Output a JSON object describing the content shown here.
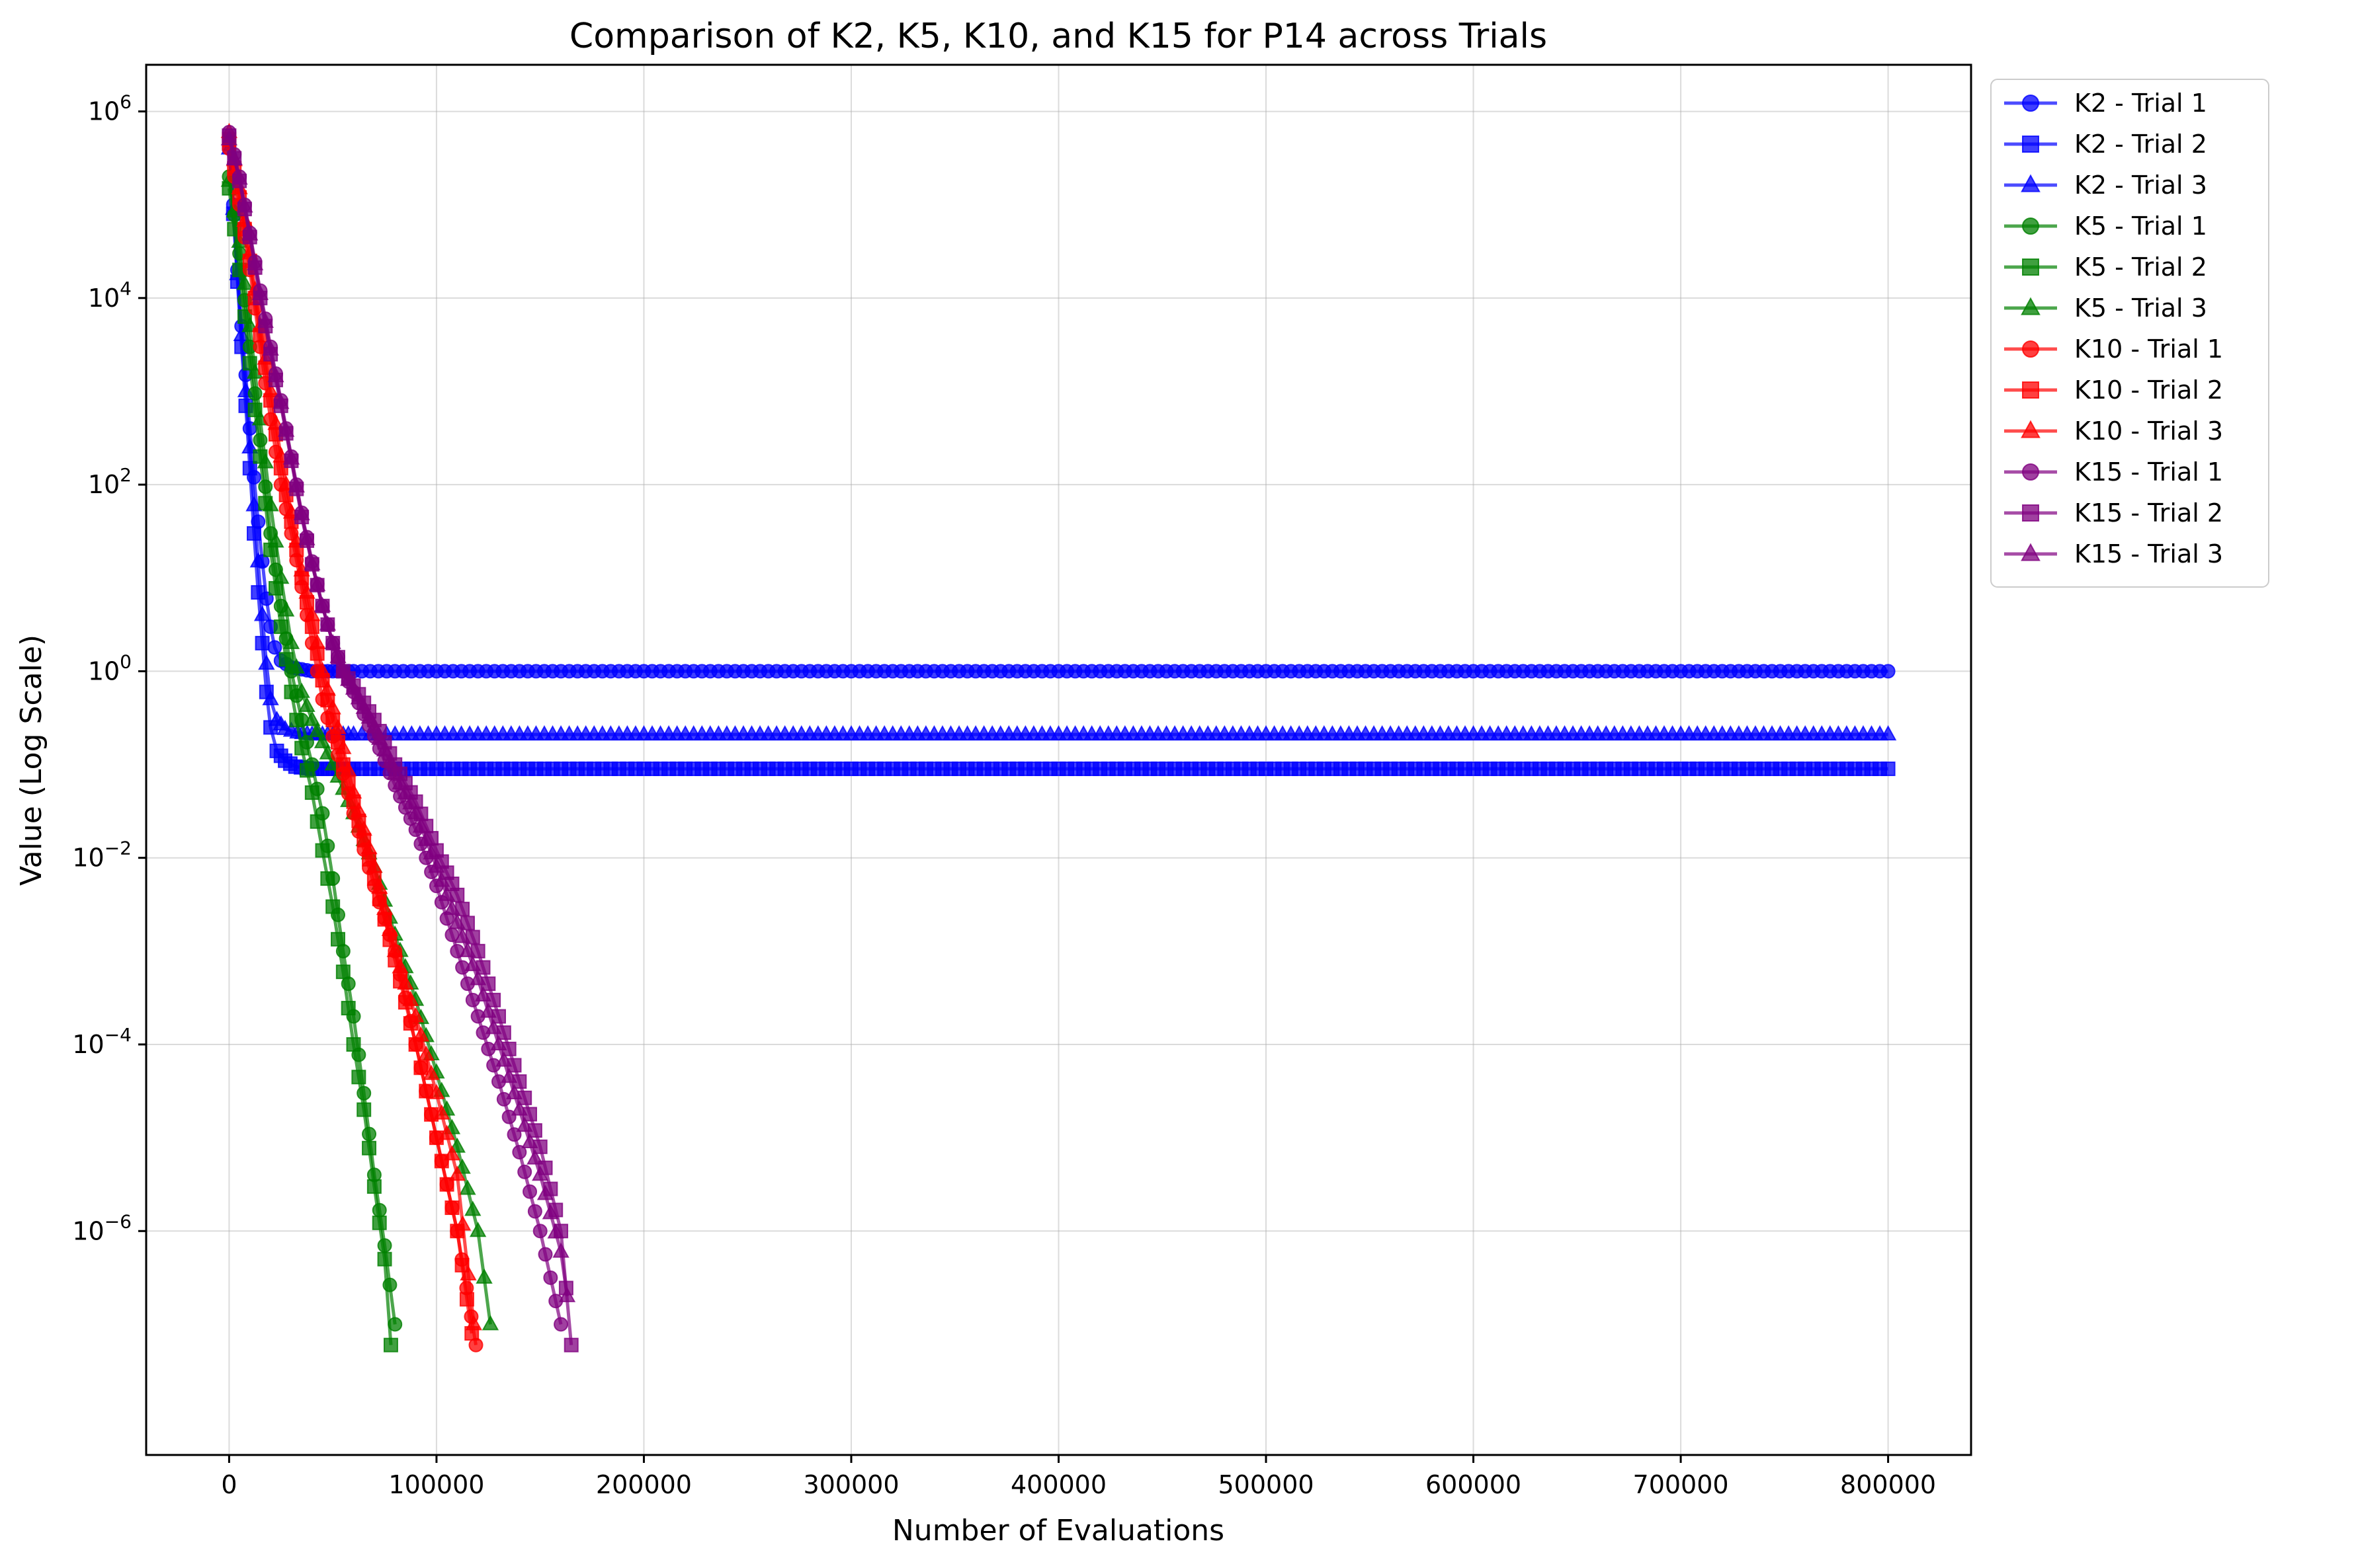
{
  "chart_data": {
    "type": "line",
    "title": "Comparison of K2, K5, K10, and K15 for P14 across Trials",
    "xlabel": "Number of Evaluations",
    "ylabel": "Value (Log Scale)",
    "xlim": [
      -40000,
      840000
    ],
    "ylim": [
      -8.4,
      6.5
    ],
    "yscale": "log",
    "grid": true,
    "legend_position": "outside-top-right",
    "x_ticks": [
      {
        "value": 0,
        "label": "0"
      },
      {
        "value": 100000,
        "label": "100000"
      },
      {
        "value": 200000,
        "label": "200000"
      },
      {
        "value": 300000,
        "label": "300000"
      },
      {
        "value": 400000,
        "label": "400000"
      },
      {
        "value": 500000,
        "label": "500000"
      },
      {
        "value": 600000,
        "label": "600000"
      },
      {
        "value": 700000,
        "label": "700000"
      },
      {
        "value": 800000,
        "label": "800000"
      }
    ],
    "y_ticks": [
      {
        "exp": 6,
        "base": "10",
        "sup": "6"
      },
      {
        "exp": 4,
        "base": "10",
        "sup": "4"
      },
      {
        "exp": 2,
        "base": "10",
        "sup": "2"
      },
      {
        "exp": 0,
        "base": "10",
        "sup": "0"
      },
      {
        "exp": -2,
        "base": "10",
        "sup": "−2"
      },
      {
        "exp": -4,
        "base": "10",
        "sup": "−4"
      },
      {
        "exp": -6,
        "base": "10",
        "sup": "−6"
      }
    ],
    "series": [
      {
        "name": "K2 - Trial 1",
        "color": "#0000ff",
        "marker": "circle",
        "points": [
          [
            0,
            500000
          ],
          [
            2000,
            100000
          ],
          [
            4000,
            20000
          ],
          [
            6000,
            5000
          ],
          [
            8000,
            1500
          ],
          [
            10000,
            400
          ],
          [
            12000,
            120
          ],
          [
            14000,
            40
          ],
          [
            16000,
            15
          ],
          [
            18000,
            6
          ],
          [
            20000,
            3
          ],
          [
            22000,
            1.8
          ],
          [
            25000,
            1.3
          ],
          [
            30000,
            1.1
          ],
          [
            40000,
            1.0
          ],
          [
            60000,
            1.0
          ],
          [
            100000,
            1.0
          ],
          [
            200000,
            1.0
          ],
          [
            400000,
            1.0
          ],
          [
            600000,
            1.0
          ],
          [
            800000,
            1.0
          ]
        ]
      },
      {
        "name": "K2 - Trial 2",
        "color": "#0000ff",
        "marker": "square",
        "points": [
          [
            0,
            450000
          ],
          [
            2000,
            80000
          ],
          [
            4000,
            15000
          ],
          [
            6000,
            3000
          ],
          [
            8000,
            700
          ],
          [
            10000,
            150
          ],
          [
            12000,
            30
          ],
          [
            14000,
            7
          ],
          [
            16000,
            2
          ],
          [
            18000,
            0.6
          ],
          [
            20000,
            0.25
          ],
          [
            23000,
            0.14
          ],
          [
            27000,
            0.11
          ],
          [
            32000,
            0.095
          ],
          [
            40000,
            0.09
          ],
          [
            60000,
            0.09
          ],
          [
            100000,
            0.09
          ],
          [
            200000,
            0.09
          ],
          [
            400000,
            0.09
          ],
          [
            600000,
            0.09
          ],
          [
            800000,
            0.09
          ]
        ]
      },
      {
        "name": "K2 - Trial 3",
        "color": "#0000ff",
        "marker": "triangle",
        "points": [
          [
            0,
            400000
          ],
          [
            2000,
            90000
          ],
          [
            4000,
            18000
          ],
          [
            6000,
            4000
          ],
          [
            8000,
            1000
          ],
          [
            10000,
            250
          ],
          [
            12000,
            60
          ],
          [
            14000,
            15
          ],
          [
            16000,
            4
          ],
          [
            18000,
            1.2
          ],
          [
            20000,
            0.5
          ],
          [
            23000,
            0.3
          ],
          [
            27000,
            0.24
          ],
          [
            33000,
            0.22
          ],
          [
            40000,
            0.21
          ],
          [
            60000,
            0.21
          ],
          [
            100000,
            0.21
          ],
          [
            200000,
            0.21
          ],
          [
            400000,
            0.21
          ],
          [
            600000,
            0.21
          ],
          [
            800000,
            0.21
          ]
        ]
      },
      {
        "name": "K5 - Trial 1",
        "color": "#008000",
        "marker": "circle",
        "points": [
          [
            0,
            200000
          ],
          [
            5000,
            30000
          ],
          [
            10000,
            3000
          ],
          [
            15000,
            300
          ],
          [
            20000,
            30
          ],
          [
            25000,
            5
          ],
          [
            30000,
            1
          ],
          [
            35000,
            0.3
          ],
          [
            40000,
            0.1
          ],
          [
            45000,
            0.03
          ],
          [
            50000,
            0.006
          ],
          [
            55000,
            0.001
          ],
          [
            60000,
            0.0002
          ],
          [
            65000,
            3e-05
          ],
          [
            70000,
            4e-06
          ],
          [
            75000,
            7e-07
          ],
          [
            80000,
            1e-07
          ]
        ]
      },
      {
        "name": "K5 - Trial 2",
        "color": "#008000",
        "marker": "square",
        "points": [
          [
            0,
            150000
          ],
          [
            5000,
            20000
          ],
          [
            10000,
            2000
          ],
          [
            15000,
            200
          ],
          [
            20000,
            20
          ],
          [
            25000,
            3
          ],
          [
            30000,
            0.6
          ],
          [
            35000,
            0.15
          ],
          [
            40000,
            0.05
          ],
          [
            45000,
            0.012
          ],
          [
            50000,
            0.003
          ],
          [
            55000,
            0.0006
          ],
          [
            60000,
            0.0001
          ],
          [
            65000,
            2e-05
          ],
          [
            70000,
            3e-06
          ],
          [
            75000,
            5e-07
          ],
          [
            78000,
            6e-08
          ]
        ]
      },
      {
        "name": "K5 - Trial 3",
        "color": "#008000",
        "marker": "triangle",
        "points": [
          [
            0,
            180000
          ],
          [
            5000,
            40000
          ],
          [
            10000,
            5000
          ],
          [
            15000,
            500
          ],
          [
            20000,
            60
          ],
          [
            25000,
            10
          ],
          [
            30000,
            2
          ],
          [
            35000,
            0.6
          ],
          [
            40000,
            0.3
          ],
          [
            50000,
            0.1
          ],
          [
            60000,
            0.03
          ],
          [
            70000,
            0.008
          ],
          [
            80000,
            0.0015
          ],
          [
            90000,
            0.0003
          ],
          [
            100000,
            5e-05
          ],
          [
            110000,
            8e-06
          ],
          [
            120000,
            1e-06
          ],
          [
            126000,
            1e-07
          ]
        ]
      },
      {
        "name": "K10 - Trial 1",
        "color": "#ff0000",
        "marker": "circle",
        "points": [
          [
            0,
            400000
          ],
          [
            5000,
            100000
          ],
          [
            10000,
            20000
          ],
          [
            15000,
            3000
          ],
          [
            20000,
            500
          ],
          [
            25000,
            100
          ],
          [
            30000,
            30
          ],
          [
            35000,
            8
          ],
          [
            40000,
            2
          ],
          [
            45000,
            0.5
          ],
          [
            50000,
            0.2
          ],
          [
            55000,
            0.08
          ],
          [
            60000,
            0.03
          ],
          [
            70000,
            0.005
          ],
          [
            80000,
            0.001
          ],
          [
            90000,
            0.0001
          ],
          [
            100000,
            1e-05
          ],
          [
            110000,
            1e-06
          ],
          [
            119000,
            6e-08
          ]
        ]
      },
      {
        "name": "K10 - Trial 2",
        "color": "#ff0000",
        "marker": "square",
        "points": [
          [
            0,
            500000
          ],
          [
            5000,
            120000
          ],
          [
            10000,
            25000
          ],
          [
            15000,
            4000
          ],
          [
            20000,
            800
          ],
          [
            25000,
            150
          ],
          [
            30000,
            40
          ],
          [
            35000,
            10
          ],
          [
            40000,
            3
          ],
          [
            45000,
            0.8
          ],
          [
            50000,
            0.3
          ],
          [
            55000,
            0.1
          ],
          [
            60000,
            0.04
          ],
          [
            70000,
            0.006
          ],
          [
            80000,
            0.0008
          ],
          [
            90000,
            0.0001
          ],
          [
            100000,
            1e-05
          ],
          [
            110000,
            1e-06
          ],
          [
            117000,
            8e-08
          ]
        ]
      },
      {
        "name": "K10 - Trial 3",
        "color": "#ff0000",
        "marker": "triangle",
        "points": [
          [
            0,
            600000
          ],
          [
            5000,
            150000
          ],
          [
            10000,
            30000
          ],
          [
            15000,
            5000
          ],
          [
            20000,
            1000
          ],
          [
            25000,
            200
          ],
          [
            30000,
            50
          ],
          [
            35000,
            12
          ],
          [
            40000,
            4
          ],
          [
            45000,
            1
          ],
          [
            50000,
            0.4
          ],
          [
            55000,
            0.15
          ],
          [
            60000,
            0.05
          ],
          [
            70000,
            0.008
          ],
          [
            80000,
            0.001
          ],
          [
            90000,
            0.0002
          ],
          [
            100000,
            3e-05
          ],
          [
            110000,
            4e-06
          ],
          [
            118000,
            1e-07
          ]
        ]
      },
      {
        "name": "K15 - Trial 1",
        "color": "#800080",
        "marker": "circle",
        "points": [
          [
            0,
            600000
          ],
          [
            5000,
            200000
          ],
          [
            10000,
            50000
          ],
          [
            15000,
            12000
          ],
          [
            20000,
            3000
          ],
          [
            25000,
            800
          ],
          [
            30000,
            200
          ],
          [
            35000,
            50
          ],
          [
            40000,
            15
          ],
          [
            45000,
            5
          ],
          [
            50000,
            2
          ],
          [
            55000,
            1
          ],
          [
            60000,
            0.6
          ],
          [
            70000,
            0.2
          ],
          [
            80000,
            0.06
          ],
          [
            90000,
            0.02
          ],
          [
            100000,
            0.005
          ],
          [
            110000,
            0.001
          ],
          [
            120000,
            0.0002
          ],
          [
            130000,
            4e-05
          ],
          [
            140000,
            7e-06
          ],
          [
            150000,
            1e-06
          ],
          [
            160000,
            1e-07
          ]
        ]
      },
      {
        "name": "K15 - Trial 2",
        "color": "#800080",
        "marker": "square",
        "points": [
          [
            0,
            550000
          ],
          [
            5000,
            180000
          ],
          [
            10000,
            45000
          ],
          [
            15000,
            10000
          ],
          [
            20000,
            2500
          ],
          [
            25000,
            700
          ],
          [
            30000,
            180
          ],
          [
            35000,
            45
          ],
          [
            40000,
            14
          ],
          [
            45000,
            5
          ],
          [
            50000,
            2
          ],
          [
            55000,
            1
          ],
          [
            60000,
            0.7
          ],
          [
            70000,
            0.3
          ],
          [
            80000,
            0.1
          ],
          [
            90000,
            0.04
          ],
          [
            100000,
            0.012
          ],
          [
            110000,
            0.004
          ],
          [
            120000,
            0.001
          ],
          [
            130000,
            0.0002
          ],
          [
            140000,
            4e-05
          ],
          [
            150000,
            8e-06
          ],
          [
            160000,
            1e-06
          ],
          [
            165000,
            6e-08
          ]
        ]
      },
      {
        "name": "K15 - Trial 3",
        "color": "#800080",
        "marker": "triangle",
        "points": [
          [
            0,
            500000
          ],
          [
            5000,
            190000
          ],
          [
            10000,
            48000
          ],
          [
            15000,
            11000
          ],
          [
            20000,
            2800
          ],
          [
            25000,
            750
          ],
          [
            30000,
            190
          ],
          [
            35000,
            48
          ],
          [
            40000,
            14
          ],
          [
            45000,
            5
          ],
          [
            50000,
            2
          ],
          [
            55000,
            1
          ],
          [
            60000,
            0.65
          ],
          [
            70000,
            0.25
          ],
          [
            80000,
            0.08
          ],
          [
            90000,
            0.03
          ],
          [
            100000,
            0.008
          ],
          [
            110000,
            0.002
          ],
          [
            120000,
            0.0005
          ],
          [
            130000,
            0.0001
          ],
          [
            140000,
            2e-05
          ],
          [
            150000,
            4e-06
          ],
          [
            160000,
            6e-07
          ],
          [
            163000,
            2e-07
          ]
        ]
      }
    ]
  }
}
